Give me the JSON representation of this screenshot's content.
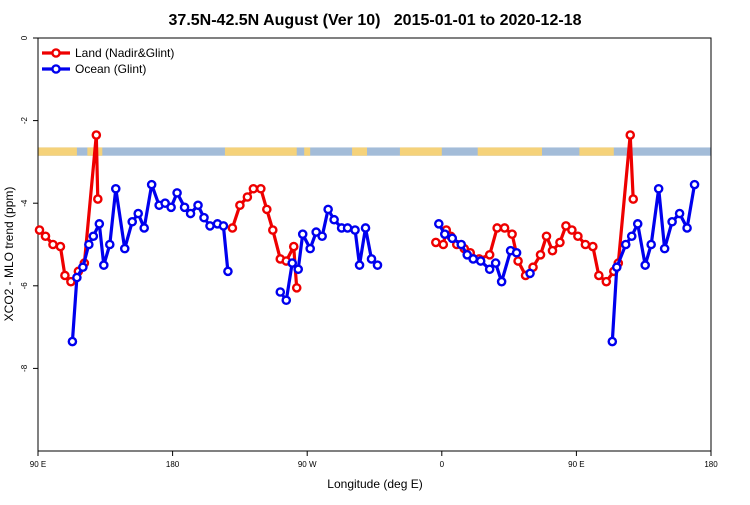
{
  "chart_data": {
    "type": "line",
    "title": "37.5N-42.5N August (Ver 10)   2015-01-01 to 2020-12-18",
    "xlabel": "Longitude (deg E)",
    "ylabel": "XCO2 - MLO trend (ppm)",
    "xlim": [
      90,
      450
    ],
    "ylim": [
      -10,
      0
    ],
    "x_ticks": [
      {
        "value": 90,
        "label": "90 E"
      },
      {
        "value": 180,
        "label": "180"
      },
      {
        "value": 270,
        "label": "90 W"
      },
      {
        "value": 360,
        "label": "0"
      },
      {
        "value": 450,
        "label": "90 E"
      },
      {
        "value": 540,
        "label": "180"
      }
    ],
    "y_ticks": [
      {
        "value": 0,
        "label": "0"
      },
      {
        "value": -2,
        "label": "-2"
      },
      {
        "value": -4,
        "label": "-4"
      },
      {
        "value": -6,
        "label": "-6"
      },
      {
        "value": -8,
        "label": "-8"
      }
    ],
    "legend_position": "top-left",
    "grid": false,
    "land_ocean_band": {
      "y_range": [
        -2.85,
        -2.65
      ],
      "land_color": "#f5d27a",
      "ocean_color": "#a3bcd8",
      "land_segments": [
        [
          90,
          116
        ],
        [
          123,
          125
        ],
        [
          125,
          133
        ],
        [
          215,
          263
        ],
        [
          268,
          272
        ],
        [
          300,
          310
        ],
        [
          332,
          360
        ],
        [
          384,
          427
        ],
        [
          452,
          475
        ]
      ]
    },
    "series": [
      {
        "name": "Land (Nadir&Glint)",
        "color": "#ee0000",
        "points": [
          [
            91,
            -4.65
          ],
          [
            95,
            -4.8
          ],
          [
            100,
            -5.0
          ],
          [
            105,
            -5.05
          ],
          [
            108,
            -5.75
          ],
          [
            112,
            -5.9
          ],
          [
            117,
            -5.65
          ],
          [
            121,
            -5.45
          ],
          [
            129,
            -2.35
          ],
          [
            130,
            -3.9
          ],
          null,
          [
            220,
            -4.6
          ],
          [
            225,
            -4.05
          ],
          [
            230,
            -3.85
          ],
          [
            234,
            -3.65
          ],
          [
            239,
            -3.65
          ],
          [
            243,
            -4.15
          ],
          [
            247,
            -4.65
          ],
          [
            252,
            -5.35
          ],
          [
            256,
            -5.4
          ],
          [
            261,
            -5.05
          ],
          [
            263,
            -6.05
          ],
          null,
          [
            356,
            -4.95
          ],
          [
            361,
            -5.0
          ],
          [
            363,
            -4.65
          ],
          [
            366,
            -4.8
          ],
          [
            370,
            -5.0
          ],
          [
            375,
            -5.1
          ],
          [
            379,
            -5.2
          ],
          [
            385,
            -5.35
          ],
          [
            392,
            -5.25
          ],
          [
            397,
            -4.6
          ],
          [
            402,
            -4.6
          ],
          [
            407,
            -4.75
          ],
          [
            411,
            -5.4
          ],
          [
            416,
            -5.75
          ],
          [
            421,
            -5.55
          ],
          [
            426,
            -5.25
          ],
          [
            430,
            -4.8
          ],
          [
            434,
            -5.15
          ],
          [
            439,
            -4.95
          ],
          [
            443,
            -4.55
          ],
          [
            447,
            -4.65
          ],
          [
            451,
            -4.8
          ],
          [
            456,
            -5.0
          ],
          [
            461,
            -5.05
          ],
          [
            465,
            -5.75
          ],
          [
            470,
            -5.9
          ],
          [
            475,
            -5.65
          ],
          [
            478,
            -5.45
          ],
          [
            486,
            -2.35
          ],
          [
            488,
            -3.9
          ]
        ]
      },
      {
        "name": "Ocean (Glint)",
        "color": "#0000ee",
        "points": [
          [
            113,
            -7.35
          ],
          [
            116,
            -5.8
          ],
          [
            120,
            -5.55
          ],
          [
            124,
            -5.0
          ],
          [
            127,
            -4.8
          ],
          [
            131,
            -4.5
          ],
          [
            134,
            -5.5
          ],
          [
            138,
            -5.0
          ],
          [
            142,
            -3.65
          ],
          [
            148,
            -5.1
          ],
          [
            153,
            -4.45
          ],
          [
            157,
            -4.25
          ],
          [
            161,
            -4.6
          ],
          [
            166,
            -3.55
          ],
          [
            171,
            -4.05
          ],
          [
            175,
            -4.0
          ],
          [
            179,
            -4.1
          ],
          [
            183,
            -3.75
          ],
          [
            188,
            -4.1
          ],
          [
            192,
            -4.25
          ],
          [
            197,
            -4.05
          ],
          [
            201,
            -4.35
          ],
          [
            205,
            -4.55
          ],
          [
            210,
            -4.5
          ],
          [
            214,
            -4.55
          ],
          [
            217,
            -5.65
          ],
          null,
          [
            252,
            -6.15
          ],
          [
            256,
            -6.35
          ],
          [
            260,
            -5.45
          ],
          [
            264,
            -5.6
          ],
          [
            267,
            -4.75
          ],
          [
            272,
            -5.1
          ],
          [
            276,
            -4.7
          ],
          [
            280,
            -4.8
          ],
          [
            284,
            -4.15
          ],
          [
            288,
            -4.4
          ],
          [
            293,
            -4.6
          ],
          [
            297,
            -4.6
          ],
          [
            302,
            -4.65
          ],
          [
            305,
            -5.5
          ],
          [
            309,
            -4.6
          ],
          [
            313,
            -5.35
          ],
          [
            317,
            -5.5
          ],
          null,
          [
            358,
            -4.5
          ],
          [
            362,
            -4.75
          ],
          [
            367,
            -4.85
          ],
          [
            373,
            -5.0
          ],
          [
            377,
            -5.25
          ],
          [
            381,
            -5.35
          ],
          [
            386,
            -5.4
          ],
          [
            392,
            -5.6
          ],
          [
            396,
            -5.45
          ],
          [
            400,
            -5.9
          ],
          [
            406,
            -5.15
          ],
          [
            410,
            -5.2
          ],
          null,
          [
            419,
            -5.7
          ],
          null,
          [
            474,
            -7.35
          ],
          [
            477,
            -5.55
          ],
          [
            483,
            -5.0
          ],
          [
            487,
            -4.8
          ],
          [
            491,
            -4.5
          ],
          [
            496,
            -5.5
          ],
          [
            500,
            -5.0
          ],
          [
            505,
            -3.65
          ],
          [
            509,
            -5.1
          ],
          [
            514,
            -4.45
          ],
          [
            519,
            -4.25
          ],
          [
            524,
            -4.6
          ],
          [
            529,
            -3.55
          ]
        ]
      }
    ]
  }
}
